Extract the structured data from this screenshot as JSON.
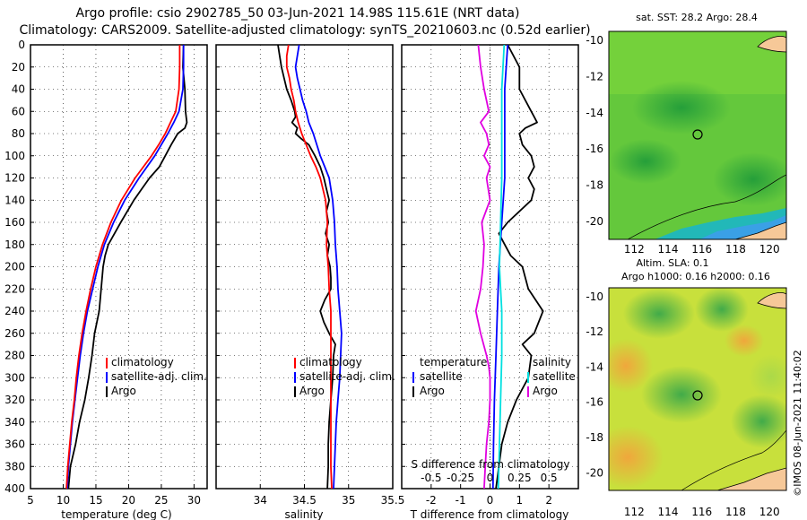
{
  "title_line1": "Argo profile: csio 2902785_50 03-Jun-2021 14.98S 115.61E (NRT data)",
  "title_line2": "Climatology: CARS2009. Satellite-adjusted climatology: synTS_20210603.nc (0.52d earlier)",
  "map_top_title": "sat. SST: 28.2 Argo: 28.4",
  "map_bottom_title1": "Altim. SLA: 0.1",
  "map_bottom_title2": "Argo h1000: 0.16 h2000: 0.16",
  "credit": "©IMOS 08-Jun-2021 11:40:02",
  "colors": {
    "climatology": "#ff0000",
    "satellite": "#0000ff",
    "argo": "#000000",
    "sat_diff": "#00e0e0",
    "argo_diff": "#e000e0"
  },
  "chart_data": [
    {
      "type": "line",
      "title": "",
      "xlabel": "temperature (deg C)",
      "ylabel": "",
      "xlim": [
        5,
        32
      ],
      "ylim": [
        400,
        0
      ],
      "xticks": [
        "5",
        "10",
        "15",
        "20",
        "25",
        "30"
      ],
      "yticks": [
        "0",
        "20",
        "40",
        "60",
        "80",
        "100",
        "120",
        "140",
        "160",
        "180",
        "200",
        "220",
        "240",
        "260",
        "280",
        "300",
        "320",
        "340",
        "360",
        "380",
        "400"
      ],
      "legend": [
        "climatology",
        "satellite-adj. clim.",
        "Argo"
      ],
      "series": [
        {
          "name": "climatology",
          "depth": [
            0,
            20,
            40,
            60,
            70,
            80,
            90,
            100,
            120,
            140,
            160,
            180,
            200,
            220,
            240,
            260,
            280,
            300,
            320,
            340,
            360,
            380,
            400
          ],
          "values": [
            27.8,
            27.8,
            27.7,
            27.2,
            26.4,
            25.6,
            24.6,
            23.5,
            21.0,
            18.9,
            17.3,
            16.0,
            15.0,
            14.2,
            13.5,
            12.9,
            12.4,
            12.0,
            11.7,
            11.3,
            11.0,
            10.7,
            10.5
          ]
        },
        {
          "name": "satellite-adj. clim.",
          "depth": [
            0,
            20,
            40,
            60,
            70,
            80,
            90,
            100,
            120,
            140,
            160,
            180,
            200,
            220,
            240,
            260,
            280,
            300,
            320,
            340,
            360,
            380,
            400
          ],
          "values": [
            28.4,
            28.4,
            28.3,
            27.7,
            26.9,
            26.0,
            25.0,
            24.0,
            21.6,
            19.4,
            17.7,
            16.3,
            15.3,
            14.5,
            13.7,
            13.1,
            12.6,
            12.2,
            11.8,
            11.4,
            11.1,
            10.8,
            10.6
          ]
        },
        {
          "name": "Argo",
          "depth": [
            0,
            20,
            40,
            60,
            70,
            75,
            80,
            90,
            100,
            110,
            120,
            130,
            140,
            160,
            180,
            190,
            200,
            220,
            240,
            260,
            280,
            300,
            320,
            340,
            360,
            380,
            400
          ],
          "values": [
            28.4,
            28.3,
            28.6,
            28.7,
            28.9,
            28.6,
            27.5,
            26.5,
            25.6,
            24.7,
            23.2,
            22.0,
            20.8,
            18.8,
            16.9,
            16.4,
            16.1,
            15.8,
            15.5,
            14.8,
            14.4,
            13.9,
            13.3,
            12.5,
            11.9,
            11.1,
            10.8
          ]
        }
      ]
    },
    {
      "type": "line",
      "title": "",
      "xlabel": "salinity",
      "ylabel": "",
      "xlim": [
        33.5,
        35.5
      ],
      "ylim": [
        400,
        0
      ],
      "xticks": [
        "34",
        "34.5",
        "35",
        "35.5"
      ],
      "legend": [
        "climatology",
        "satellite-adj. clim.",
        "Argo"
      ],
      "series": [
        {
          "name": "climatology",
          "depth": [
            0,
            10,
            20,
            30,
            40,
            50,
            60,
            70,
            80,
            90,
            100,
            110,
            120,
            140,
            160,
            180,
            200,
            220,
            240,
            260,
            280,
            300,
            320,
            340,
            360,
            380,
            400
          ],
          "values": [
            34.32,
            34.3,
            34.3,
            34.33,
            34.35,
            34.38,
            34.4,
            34.43,
            34.47,
            34.52,
            34.57,
            34.63,
            34.68,
            34.74,
            34.76,
            34.75,
            34.77,
            34.78,
            34.8,
            34.8,
            34.8,
            34.8,
            34.8,
            34.8,
            34.8,
            34.8,
            34.81
          ]
        },
        {
          "name": "satellite-adj. clim.",
          "depth": [
            0,
            10,
            20,
            30,
            40,
            50,
            60,
            70,
            80,
            90,
            100,
            110,
            120,
            140,
            160,
            180,
            200,
            220,
            240,
            260,
            280,
            300,
            320,
            340,
            360,
            380,
            400
          ],
          "values": [
            34.44,
            34.42,
            34.4,
            34.42,
            34.45,
            34.48,
            34.52,
            34.55,
            34.6,
            34.64,
            34.68,
            34.73,
            34.78,
            34.82,
            34.84,
            34.85,
            34.87,
            34.88,
            34.9,
            34.92,
            34.91,
            34.9,
            34.88,
            34.86,
            34.85,
            34.84,
            34.83
          ]
        },
        {
          "name": "Argo",
          "depth": [
            0,
            10,
            20,
            30,
            40,
            50,
            60,
            65,
            70,
            75,
            80,
            85,
            90,
            100,
            110,
            120,
            130,
            140,
            150,
            160,
            170,
            180,
            190,
            200,
            210,
            220,
            230,
            240,
            250,
            260,
            270,
            280,
            300,
            320,
            340,
            360,
            380,
            400
          ],
          "values": [
            34.2,
            34.22,
            34.24,
            34.27,
            34.3,
            34.35,
            34.39,
            34.4,
            34.36,
            34.42,
            34.4,
            34.47,
            34.55,
            34.62,
            34.68,
            34.72,
            34.75,
            34.78,
            34.75,
            34.77,
            34.74,
            34.78,
            34.76,
            34.79,
            34.8,
            34.8,
            34.73,
            34.68,
            34.72,
            34.78,
            34.85,
            34.83,
            34.82,
            34.8,
            34.78,
            34.77,
            34.77,
            34.76
          ]
        }
      ]
    },
    {
      "type": "line",
      "title": "",
      "xlabel": "T difference from climatology",
      "xlabel_top": "S difference from climatology",
      "ylabel": "",
      "xlim": [
        -3,
        3
      ],
      "ylim": [
        400,
        0
      ],
      "xticks": [
        "-2",
        "-1",
        "0",
        "1",
        "2"
      ],
      "xticks_top": [
        "-0.5",
        "-0.25",
        "0",
        "0.25",
        "0.5"
      ],
      "legend": [
        "temperature",
        "satellite",
        "Argo",
        "salinity",
        "satellite",
        "Argo"
      ],
      "series": [
        {
          "name": "temperature satellite",
          "depth": [
            0,
            40,
            80,
            120,
            160,
            200,
            240,
            280,
            320,
            360,
            400
          ],
          "values": [
            0.6,
            0.5,
            0.5,
            0.5,
            0.4,
            0.3,
            0.25,
            0.2,
            0.15,
            0.12,
            0.1
          ]
        },
        {
          "name": "temperature Argo",
          "depth": [
            0,
            20,
            40,
            60,
            65,
            70,
            75,
            80,
            90,
            100,
            110,
            120,
            130,
            140,
            160,
            170,
            180,
            190,
            200,
            220,
            240,
            260,
            270,
            280,
            300,
            320,
            340,
            360,
            380,
            400
          ],
          "values": [
            0.6,
            1.0,
            1.0,
            1.4,
            1.5,
            1.6,
            1.2,
            1.0,
            1.1,
            1.4,
            1.5,
            1.3,
            1.5,
            1.4,
            0.6,
            0.3,
            0.5,
            0.7,
            1.1,
            1.3,
            1.8,
            1.5,
            1.1,
            1.4,
            1.3,
            0.9,
            0.6,
            0.4,
            0.3,
            0.2
          ]
        },
        {
          "name": "salinity satellite",
          "depth": [
            0,
            40,
            80,
            120,
            160,
            200,
            240,
            280,
            320,
            360,
            400
          ],
          "values": [
            0.12,
            0.1,
            0.1,
            0.1,
            0.09,
            0.08,
            0.1,
            0.1,
            0.09,
            0.08,
            0.07
          ]
        },
        {
          "name": "salinity Argo",
          "depth": [
            0,
            20,
            40,
            60,
            70,
            80,
            90,
            100,
            110,
            120,
            140,
            160,
            180,
            200,
            220,
            240,
            260,
            280,
            290,
            300,
            320,
            340,
            360,
            380,
            400
          ],
          "values": [
            -0.1,
            -0.08,
            -0.05,
            -0.01,
            -0.08,
            -0.03,
            -0.01,
            -0.05,
            0.0,
            -0.03,
            0.0,
            -0.07,
            -0.05,
            -0.06,
            -0.08,
            -0.12,
            -0.08,
            -0.03,
            -0.01,
            0.0,
            0.0,
            -0.01,
            -0.03,
            -0.04,
            -0.05
          ]
        }
      ]
    },
    {
      "type": "heatmap",
      "title": "sat. SST: 28.2 Argo: 28.4",
      "xticks": [
        "112",
        "114",
        "116",
        "118",
        "120"
      ],
      "yticks": [
        "-10",
        "-12",
        "-14",
        "-16",
        "-18",
        "-20"
      ],
      "xlim": [
        110.5,
        121
      ],
      "ylim": [
        -21,
        -9.5
      ],
      "argo_position": [
        115.61,
        -14.98
      ]
    },
    {
      "type": "heatmap",
      "title": "Argo h1000: 0.16 h2000: 0.16",
      "xticks": [
        "112",
        "114",
        "116",
        "118",
        "120"
      ],
      "yticks": [
        "-10",
        "-12",
        "-14",
        "-16",
        "-18",
        "-20"
      ],
      "xlim": [
        110.5,
        121
      ],
      "ylim": [
        -21,
        -9.5
      ],
      "argo_position": [
        115.61,
        -14.98
      ]
    }
  ]
}
